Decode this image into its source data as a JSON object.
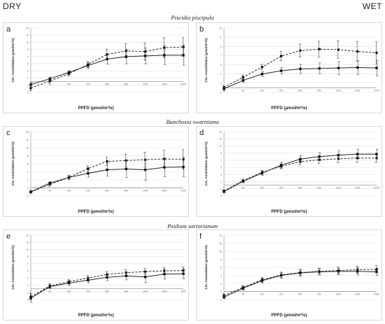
{
  "labels": {
    "left": "DRY",
    "right": "WET"
  },
  "species": [
    "Piscidia piscipula",
    "Bunchosia swartziana",
    "Psidium sartorianum"
  ],
  "ylabel": "CO₂ Assimilation (µmol/m²/s)",
  "xlabel": "PPFD (µmol/m²/s)",
  "chart_data": [
    {
      "type": "line",
      "letter": "a",
      "xlabel": "PPFD (µmol/m²/s)",
      "ylabel": "CO₂ Assimilation (µmol/m²/s)",
      "categories": [
        "0",
        "50",
        "100",
        "200",
        "500",
        "800",
        "1200",
        "1600",
        "2000"
      ],
      "ylim": [
        -3,
        15
      ],
      "yticks": [
        -3,
        -1,
        1,
        3,
        5,
        7,
        9,
        11,
        13,
        15
      ],
      "grid": true,
      "series": [
        {
          "style": "dashed",
          "values": [
            -1.8,
            0.2,
            2.2,
            4.8,
            7.6,
            8.6,
            8.4,
            9.5,
            9.7
          ],
          "err": [
            0.7,
            0.5,
            0.6,
            0.9,
            1.5,
            2.0,
            2.4,
            2.8,
            2.6
          ]
        },
        {
          "style": "solid",
          "values": [
            -0.8,
            0.8,
            2.6,
            4.5,
            6.3,
            7.0,
            7.2,
            7.4,
            7.4
          ],
          "err": [
            0.6,
            0.5,
            0.5,
            0.8,
            1.4,
            2.0,
            2.2,
            2.6,
            2.8
          ]
        }
      ]
    },
    {
      "type": "line",
      "letter": "b",
      "xlabel": "PPFD (µmol/m²/s)",
      "ylabel": "CO₂ Assimilation (µmol/m²/s)",
      "categories": [
        "0",
        "50",
        "100",
        "200",
        "500",
        "800",
        "1200",
        "1600",
        "2000"
      ],
      "ylim": [
        -1,
        13
      ],
      "yticks": [
        -1,
        1,
        3,
        5,
        7,
        9,
        11,
        13
      ],
      "grid": true,
      "series": [
        {
          "style": "dashed",
          "values": [
            0.1,
            2.3,
            4.5,
            6.9,
            8.1,
            8.4,
            8.3,
            7.9,
            7.6
          ],
          "err": [
            0.4,
            0.5,
            0.6,
            1.0,
            1.4,
            1.7,
            1.9,
            2.1,
            2.4
          ]
        },
        {
          "style": "solid",
          "values": [
            -0.2,
            1.6,
            3.0,
            3.7,
            4.1,
            4.2,
            4.3,
            4.4,
            4.3
          ],
          "err": [
            0.4,
            0.4,
            0.5,
            0.7,
            1.0,
            1.2,
            1.4,
            1.5,
            1.7
          ]
        }
      ]
    },
    {
      "type": "line",
      "letter": "c",
      "xlabel": "PPFD (µmol/m²/s)",
      "ylabel": "CO₂ Assimilation (µmol/m²/s)",
      "categories": [
        "0",
        "50",
        "100",
        "200",
        "500",
        "800",
        "1200",
        "1600",
        "2000"
      ],
      "ylim": [
        -2,
        14
      ],
      "yticks": [
        -2,
        0,
        2,
        4,
        6,
        8,
        10,
        12,
        14
      ],
      "grid": true,
      "series": [
        {
          "style": "dashed",
          "values": [
            -1.0,
            0.9,
            2.6,
            4.8,
            6.6,
            6.8,
            7.0,
            7.2,
            7.1
          ],
          "err": [
            0.3,
            0.5,
            0.5,
            0.7,
            1.1,
            1.6,
            1.9,
            2.2,
            2.4
          ]
        },
        {
          "style": "solid",
          "values": [
            -1.0,
            1.2,
            2.6,
            3.6,
            4.5,
            4.7,
            4.5,
            5.1,
            5.2
          ],
          "err": [
            0.3,
            0.4,
            0.5,
            0.9,
            1.6,
            2.1,
            2.6,
            2.3,
            2.4
          ]
        }
      ]
    },
    {
      "type": "line",
      "letter": "d",
      "xlabel": "PPFD (µmol/m²/s)",
      "ylabel": "CO₂ Assimilation (µmol/m²/s)",
      "categories": [
        "0",
        "50",
        "100",
        "200",
        "500",
        "800",
        "1200",
        "1600",
        "2000"
      ],
      "ylim": [
        -3,
        15
      ],
      "yticks": [
        -3,
        -1,
        1,
        3,
        5,
        7,
        9,
        11,
        13,
        15
      ],
      "grid": true,
      "series": [
        {
          "style": "dashed",
          "values": [
            -1.6,
            1.3,
            3.6,
            5.3,
            6.6,
            7.1,
            7.4,
            7.6,
            7.6
          ],
          "err": [
            0.3,
            0.4,
            0.6,
            0.7,
            0.9,
            1.0,
            1.1,
            1.2,
            1.2
          ]
        },
        {
          "style": "solid",
          "values": [
            -1.8,
            1.1,
            3.4,
            5.6,
            7.3,
            8.0,
            8.4,
            8.7,
            8.7
          ],
          "err": [
            0.3,
            0.4,
            0.6,
            0.8,
            1.0,
            1.1,
            1.2,
            1.3,
            1.3
          ]
        }
      ]
    },
    {
      "type": "line",
      "letter": "e",
      "xlabel": "PPFD (µmol/m²/s)",
      "ylabel": "CO₂ Assimilation (µmol/m²/s)",
      "categories": [
        "0",
        "50",
        "100",
        "200",
        "500",
        "800",
        "1200",
        "1600",
        "2000"
      ],
      "ylim": [
        -3,
        15
      ],
      "yticks": [
        -3,
        -1,
        1,
        3,
        5,
        7,
        9,
        11,
        13,
        15
      ],
      "grid": true,
      "series": [
        {
          "style": "dashed",
          "values": [
            -2.2,
            0.8,
            2.0,
            3.0,
            4.0,
            4.5,
            4.8,
            5.0,
            5.1
          ],
          "err": [
            0.9,
            0.6,
            0.6,
            0.7,
            0.8,
            0.9,
            0.9,
            1.0,
            1.0
          ]
        },
        {
          "style": "solid",
          "values": [
            -2.6,
            0.6,
            1.6,
            2.4,
            3.2,
            3.6,
            3.3,
            4.1,
            4.2
          ],
          "err": [
            1.2,
            0.6,
            0.7,
            0.8,
            0.9,
            1.1,
            1.6,
            1.4,
            1.4
          ]
        }
      ]
    },
    {
      "type": "line",
      "letter": "f",
      "xlabel": "PPFD (µmol/m²/s)",
      "ylabel": "CO₂ Assimilation (µmol/m²/s)",
      "categories": [
        "0",
        "50",
        "100",
        "200",
        "500",
        "800",
        "1200",
        "1600",
        "2000"
      ],
      "ylim": [
        -2,
        14
      ],
      "yticks": [
        -2,
        0,
        2,
        4,
        6,
        8,
        10,
        12,
        14
      ],
      "grid": true,
      "series": [
        {
          "style": "dashed",
          "values": [
            -1.0,
            1.0,
            2.9,
            4.1,
            4.7,
            5.0,
            5.2,
            5.4,
            5.5
          ],
          "err": [
            0.4,
            0.5,
            0.6,
            0.7,
            0.8,
            0.8,
            0.9,
            0.9,
            0.9
          ]
        },
        {
          "style": "solid",
          "values": [
            -1.4,
            0.8,
            2.7,
            4.0,
            4.6,
            4.9,
            5.0,
            5.0,
            4.9
          ],
          "err": [
            0.4,
            0.5,
            0.6,
            0.7,
            0.8,
            0.8,
            0.8,
            0.9,
            0.9
          ]
        }
      ]
    }
  ]
}
